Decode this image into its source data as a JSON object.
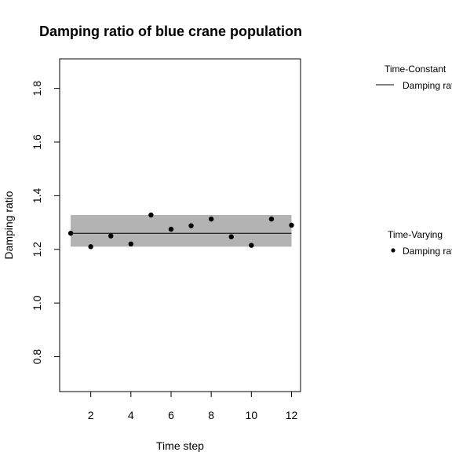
{
  "chart_data": {
    "type": "scatter",
    "title": "Damping ratio of blue crane population",
    "xlabel": "Time step",
    "ylabel": "Damping ratio",
    "xlim": [
      0.45,
      12.45
    ],
    "ylim": [
      0.67,
      1.91
    ],
    "x_ticks": [
      2,
      4,
      6,
      8,
      10,
      12
    ],
    "x_tick_labels": [
      "2",
      "4",
      "6",
      "8",
      "10",
      "12"
    ],
    "y_ticks": [
      0.8,
      1.0,
      1.2,
      1.4,
      1.6,
      1.8
    ],
    "y_tick_labels": [
      "0.8",
      "1.0",
      "1.2",
      "1.4",
      "1.6",
      "1.8"
    ],
    "grid": false,
    "time_constant": {
      "value": 1.26,
      "band": [
        1.21,
        1.328
      ],
      "x_range": [
        1,
        12
      ],
      "line_color": "#000000",
      "band_color": "#b3b3b3"
    },
    "time_varying": {
      "x": [
        1,
        2,
        3,
        4,
        5,
        6,
        7,
        8,
        9,
        10,
        11,
        12
      ],
      "y": [
        1.26,
        1.21,
        1.25,
        1.22,
        1.328,
        1.275,
        1.288,
        1.313,
        1.247,
        1.215,
        1.313,
        1.29
      ],
      "color": "#000000"
    },
    "legends": [
      {
        "title": "Time-Constant",
        "entries": [
          {
            "label": "Damping ratio",
            "symbol": "line"
          }
        ],
        "placement": "right-top"
      },
      {
        "title": "Time-Varying",
        "entries": [
          {
            "label": "Damping ratio",
            "symbol": "point"
          }
        ],
        "placement": "right-middle"
      }
    ]
  }
}
